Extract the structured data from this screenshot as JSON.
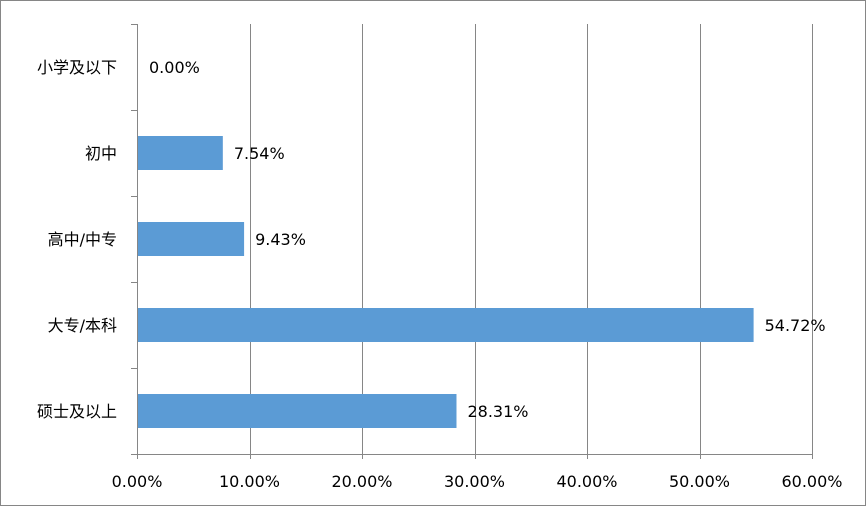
{
  "chart_data": {
    "type": "bar",
    "orientation": "horizontal",
    "categories": [
      "小学及以下",
      "初中",
      "高中/中专",
      "大专/本科",
      "硕士及以上"
    ],
    "values": [
      0.0,
      7.54,
      9.43,
      54.72,
      28.31
    ],
    "value_labels": [
      "0.00%",
      "7.54%",
      "9.43%",
      "54.72%",
      "28.31%"
    ],
    "xlim": [
      0,
      60
    ],
    "x_ticks": [
      0,
      10,
      20,
      30,
      40,
      50,
      60
    ],
    "x_tick_labels": [
      "0.00%",
      "10.00%",
      "20.00%",
      "30.00%",
      "40.00%",
      "50.00%",
      "60.00%"
    ],
    "grid": "vertical",
    "legend": "none",
    "colors": {
      "bar": "#5B9BD5",
      "grid": "#868686",
      "axis": "#868686"
    }
  }
}
